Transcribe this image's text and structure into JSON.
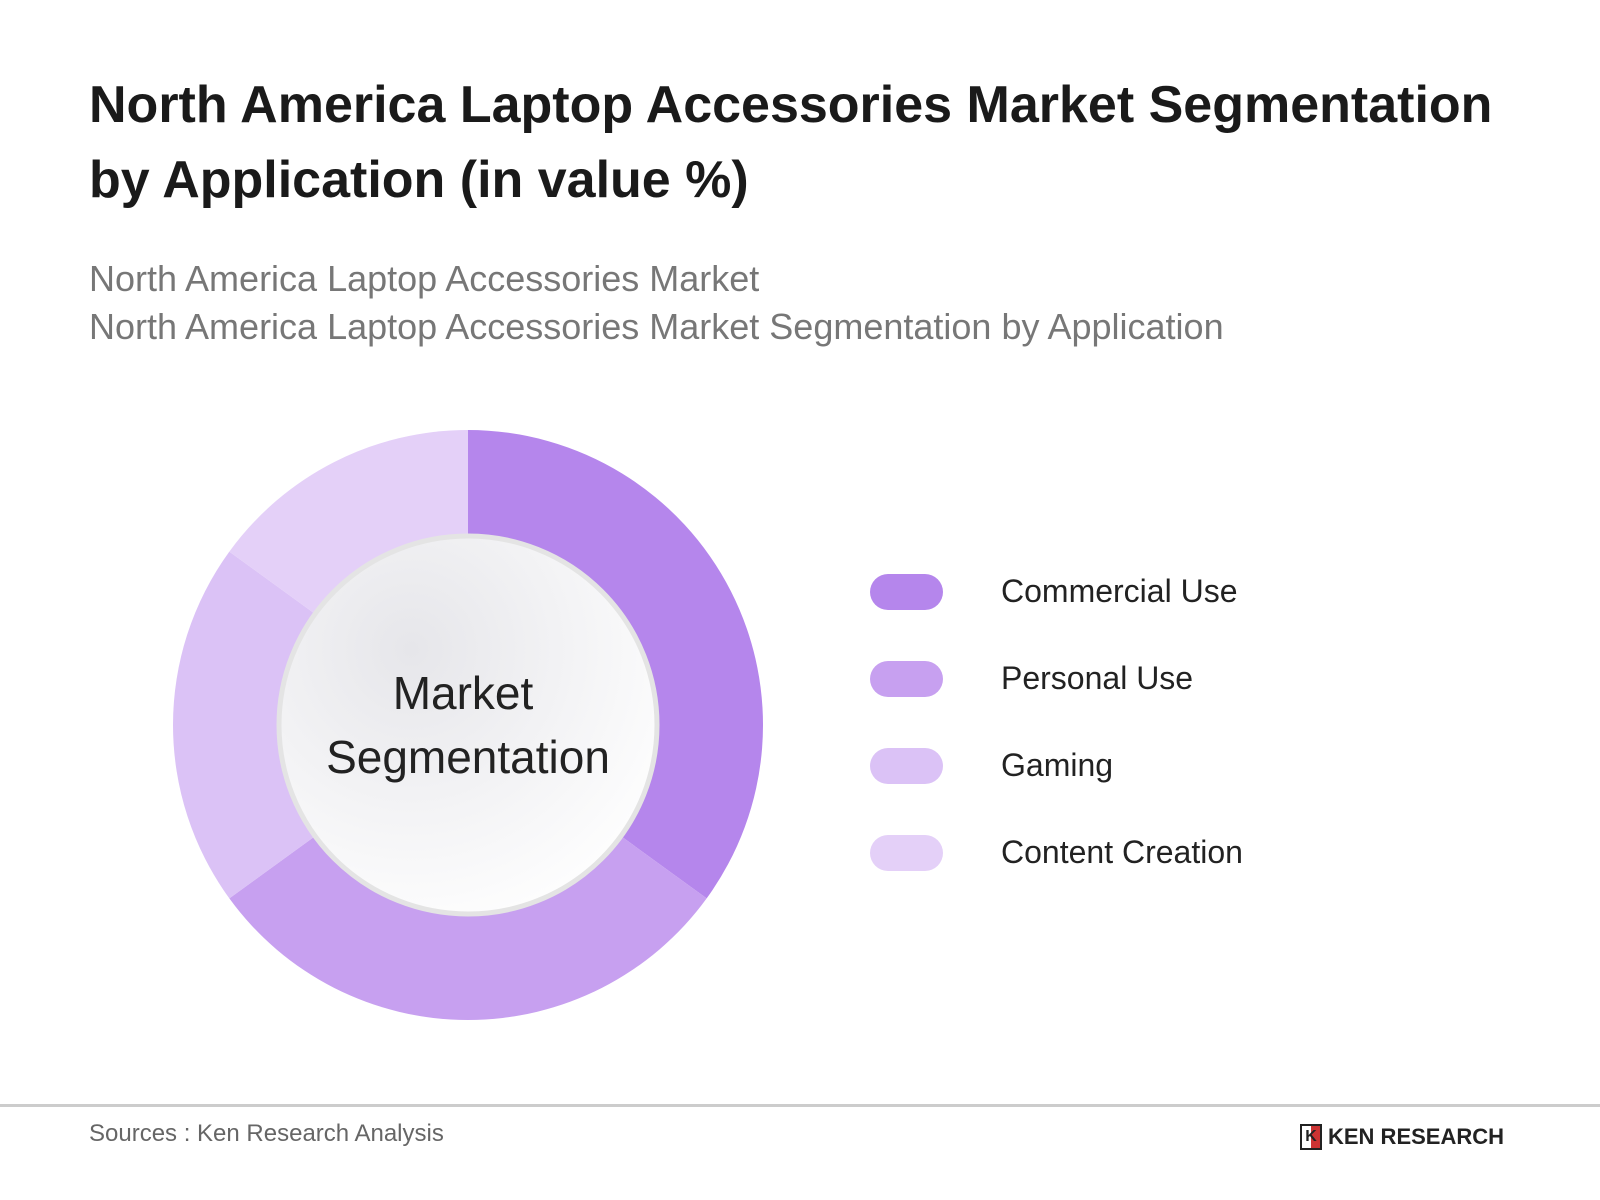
{
  "chart_data": {
    "type": "pie",
    "title": "North America Laptop Accessories Market Segmentation by Application (in value %)",
    "subtitle_lines": [
      "North America Laptop Accessories Market",
      "North America Laptop Accessories Market Segmentation by Application"
    ],
    "center_label": [
      "Market",
      "Segmentation"
    ],
    "categories": [
      "Commercial Use",
      "Personal Use",
      "Gaming",
      "Content Creation"
    ],
    "values": [
      35,
      30,
      20,
      15
    ],
    "colors": [
      "#b586ec",
      "#c7a0f0",
      "#dbc2f6",
      "#e4d0f8"
    ],
    "legend_placement": "right"
  },
  "footer": {
    "source": "Sources : Ken Research Analysis",
    "logo": "KEN RESEARCH"
  }
}
